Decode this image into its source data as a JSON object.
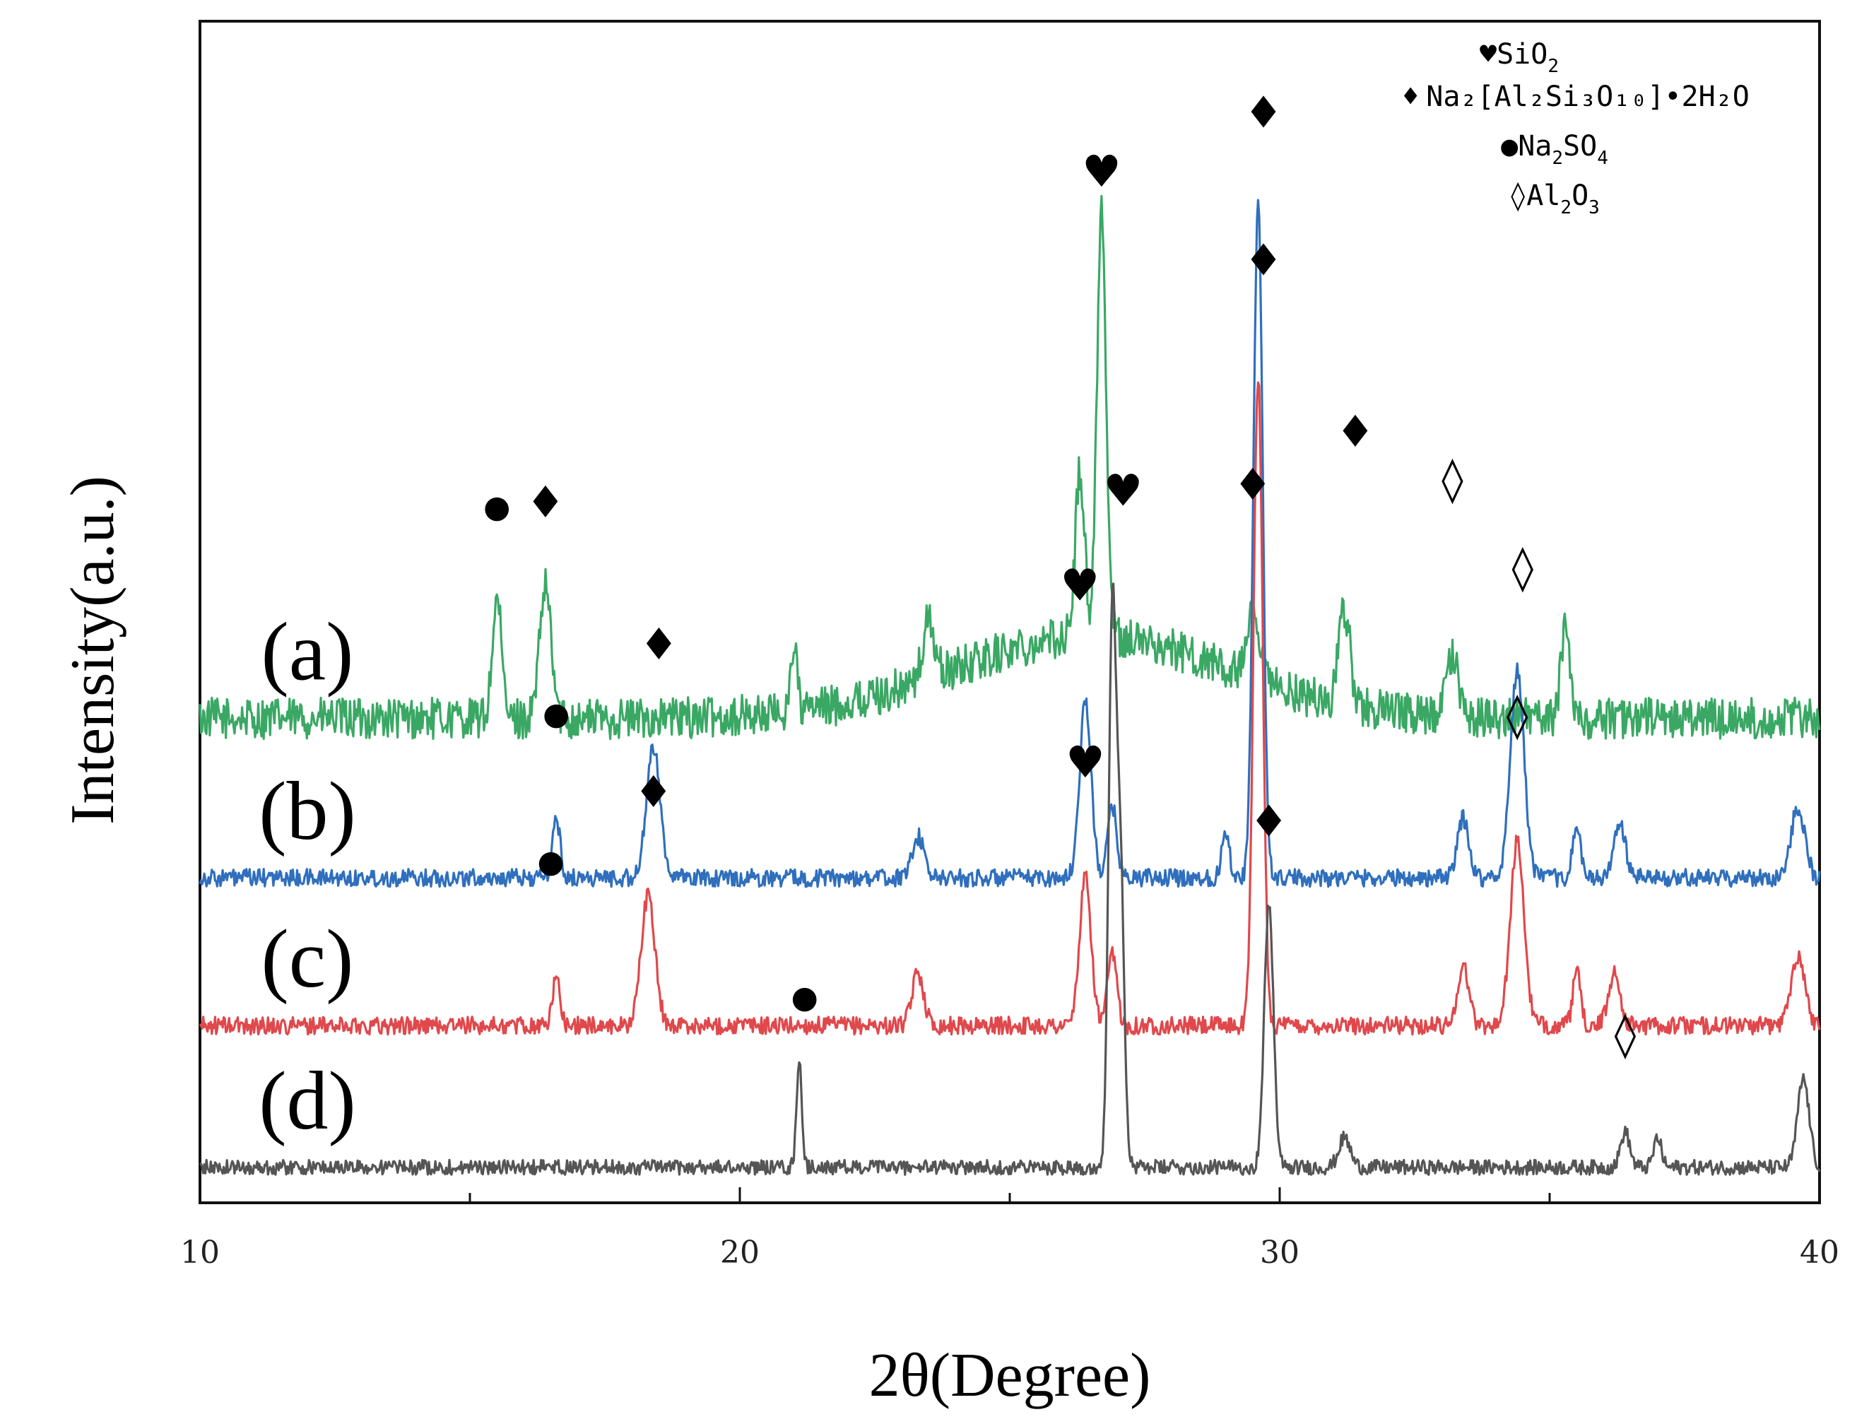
{
  "chart_data": {
    "type": "line",
    "title": "",
    "xlabel": "2θ(Degree)",
    "ylabel": "Intensity(a.u.)",
    "xlim": [
      10,
      40
    ],
    "xticks": [
      10,
      20,
      30,
      40
    ],
    "xtick_labels": [
      "10",
      "20",
      "30",
      "40"
    ],
    "series": [
      {
        "name": "(a)",
        "color": "#3aa864",
        "base": 0.82,
        "noise": 0.07,
        "hump": {
          "center": 26.5,
          "height": 0.14,
          "width": 3.5
        },
        "peaks": [
          [
            15.5,
            0.2,
            0.12
          ],
          [
            16.4,
            0.22,
            0.15
          ],
          [
            21.0,
            0.12,
            0.08
          ],
          [
            23.5,
            0.1,
            0.15
          ],
          [
            26.3,
            0.28,
            0.12
          ],
          [
            26.7,
            0.72,
            0.12
          ],
          [
            29.5,
            0.1,
            0.15
          ],
          [
            31.2,
            0.16,
            0.15
          ],
          [
            33.2,
            0.1,
            0.15
          ],
          [
            35.3,
            0.16,
            0.12
          ]
        ],
        "markers": [
          {
            "symbol": "●",
            "x": 15.5,
            "y": 1.16
          },
          {
            "symbol": "♦",
            "x": 16.4,
            "y": 1.16
          },
          {
            "symbol": "♥",
            "x": 26.7,
            "y": 1.72
          },
          {
            "symbol": "♦",
            "x": 29.5,
            "y": 1.19
          },
          {
            "symbol": "♦",
            "x": 31.4,
            "y": 1.28
          },
          {
            "symbol": "◊",
            "x": 33.2,
            "y": 1.2
          }
        ]
      },
      {
        "name": "(b)",
        "color": "#2f6fbd",
        "base": 0.55,
        "noise": 0.03,
        "hump": {
          "center": 26.5,
          "height": 0.0,
          "width": 3.5
        },
        "peaks": [
          [
            16.6,
            0.1,
            0.1
          ],
          [
            18.4,
            0.22,
            0.18
          ],
          [
            23.3,
            0.07,
            0.15
          ],
          [
            26.4,
            0.3,
            0.15
          ],
          [
            26.9,
            0.12,
            0.12
          ],
          [
            29.0,
            0.08,
            0.1
          ],
          [
            29.6,
            1.15,
            0.12
          ],
          [
            33.4,
            0.1,
            0.15
          ],
          [
            34.4,
            0.35,
            0.18
          ],
          [
            35.5,
            0.09,
            0.1
          ],
          [
            36.3,
            0.09,
            0.15
          ],
          [
            39.6,
            0.12,
            0.18
          ]
        ],
        "markers": [
          {
            "symbol": "●",
            "x": 16.6,
            "y": 0.81
          },
          {
            "symbol": "♦",
            "x": 18.5,
            "y": 0.92
          },
          {
            "symbol": "♥",
            "x": 26.3,
            "y": 1.02
          },
          {
            "symbol": "♦",
            "x": 29.7,
            "y": 1.82
          },
          {
            "symbol": "◊",
            "x": 34.5,
            "y": 1.05
          }
        ]
      },
      {
        "name": "(c)",
        "color": "#e0484c",
        "base": 0.3,
        "noise": 0.03,
        "hump": {
          "center": 26.5,
          "height": 0.0,
          "width": 3.5
        },
        "peaks": [
          [
            16.6,
            0.08,
            0.1
          ],
          [
            18.3,
            0.22,
            0.18
          ],
          [
            23.3,
            0.09,
            0.15
          ],
          [
            26.4,
            0.25,
            0.15
          ],
          [
            26.9,
            0.12,
            0.12
          ],
          [
            29.6,
            1.1,
            0.12
          ],
          [
            33.4,
            0.1,
            0.15
          ],
          [
            34.4,
            0.31,
            0.18
          ],
          [
            35.5,
            0.09,
            0.1
          ],
          [
            36.2,
            0.09,
            0.15
          ],
          [
            39.6,
            0.12,
            0.18
          ]
        ],
        "markers": [
          {
            "symbol": "●",
            "x": 16.5,
            "y": 0.56
          },
          {
            "symbol": "♦",
            "x": 18.4,
            "y": 0.67
          },
          {
            "symbol": "♥",
            "x": 26.4,
            "y": 0.72
          },
          {
            "symbol": "♦",
            "x": 29.7,
            "y": 1.57
          },
          {
            "symbol": "◊",
            "x": 34.4,
            "y": 0.8
          }
        ]
      },
      {
        "name": "(d)",
        "color": "#555555",
        "base": 0.06,
        "noise": 0.025,
        "hump": {
          "center": 26.5,
          "height": 0.0,
          "width": 3.5
        },
        "peaks": [
          [
            21.1,
            0.18,
            0.07
          ],
          [
            26.9,
            0.92,
            0.1
          ],
          [
            27.05,
            0.5,
            0.1
          ],
          [
            29.8,
            0.45,
            0.12
          ],
          [
            31.2,
            0.05,
            0.15
          ],
          [
            36.4,
            0.06,
            0.12
          ],
          [
            37.0,
            0.05,
            0.1
          ],
          [
            39.7,
            0.15,
            0.15
          ]
        ],
        "markers": [
          {
            "symbol": "●",
            "x": 21.2,
            "y": 0.33
          },
          {
            "symbol": "♥",
            "x": 27.1,
            "y": 1.18
          },
          {
            "symbol": "♦",
            "x": 29.8,
            "y": 0.62
          },
          {
            "symbol": "◊",
            "x": 36.4,
            "y": 0.26
          }
        ]
      }
    ],
    "legend": [
      {
        "symbol": "♥",
        "text": "SiO",
        "sub": "2"
      },
      {
        "symbol": "♦",
        "text": "Na₂[Al₂Si₃O₁₀]•2H₂O",
        "sub": ""
      },
      {
        "symbol": "●",
        "text": "Na",
        "sub": "2",
        "text2": "SO",
        "sub2": "4"
      },
      {
        "symbol": "◊",
        "text": "Al",
        "sub": "2",
        "text2": "O",
        "sub2": "3"
      }
    ],
    "legend_position": "top-right"
  }
}
